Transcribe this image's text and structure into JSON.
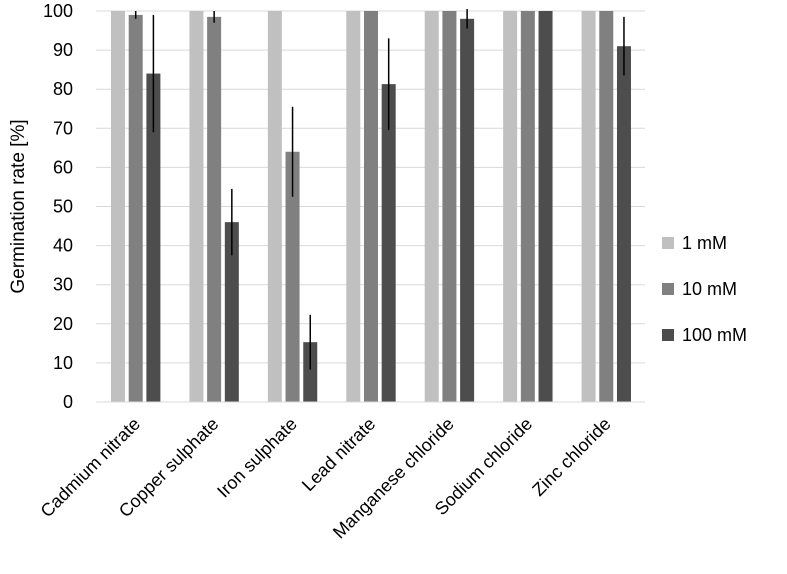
{
  "chart_data": {
    "type": "bar",
    "title": "",
    "xlabel": "",
    "ylabel": "Germination rate [%]",
    "ylim": [
      0,
      100
    ],
    "yticks": [
      0,
      10,
      20,
      30,
      40,
      50,
      60,
      70,
      80,
      90,
      100
    ],
    "grid": true,
    "legend_position": "right",
    "categories": [
      "Cadmium nitrate",
      "Copper sulphate",
      "Iron sulphate",
      "Lead nitrate",
      "Manganese chloride",
      "Sodium chloride",
      "Zinc chloride"
    ],
    "series": [
      {
        "name": "1 mM",
        "color": "#c0c0c0",
        "values": [
          100,
          100,
          100,
          100,
          100,
          100,
          100
        ],
        "errors": [
          0,
          0,
          0,
          0,
          0,
          0,
          0
        ]
      },
      {
        "name": "10 mM",
        "color": "#808080",
        "values": [
          99,
          98.5,
          64,
          100,
          100,
          100,
          100
        ],
        "errors": [
          1,
          1.5,
          11.5,
          0,
          0,
          0,
          0
        ]
      },
      {
        "name": "100 mM",
        "color": "#4d4d4d",
        "values": [
          84,
          46,
          15.3,
          81.3,
          98,
          100,
          91
        ],
        "errors": [
          15,
          8.5,
          7,
          11.7,
          2.5,
          0,
          7.5
        ]
      }
    ]
  }
}
